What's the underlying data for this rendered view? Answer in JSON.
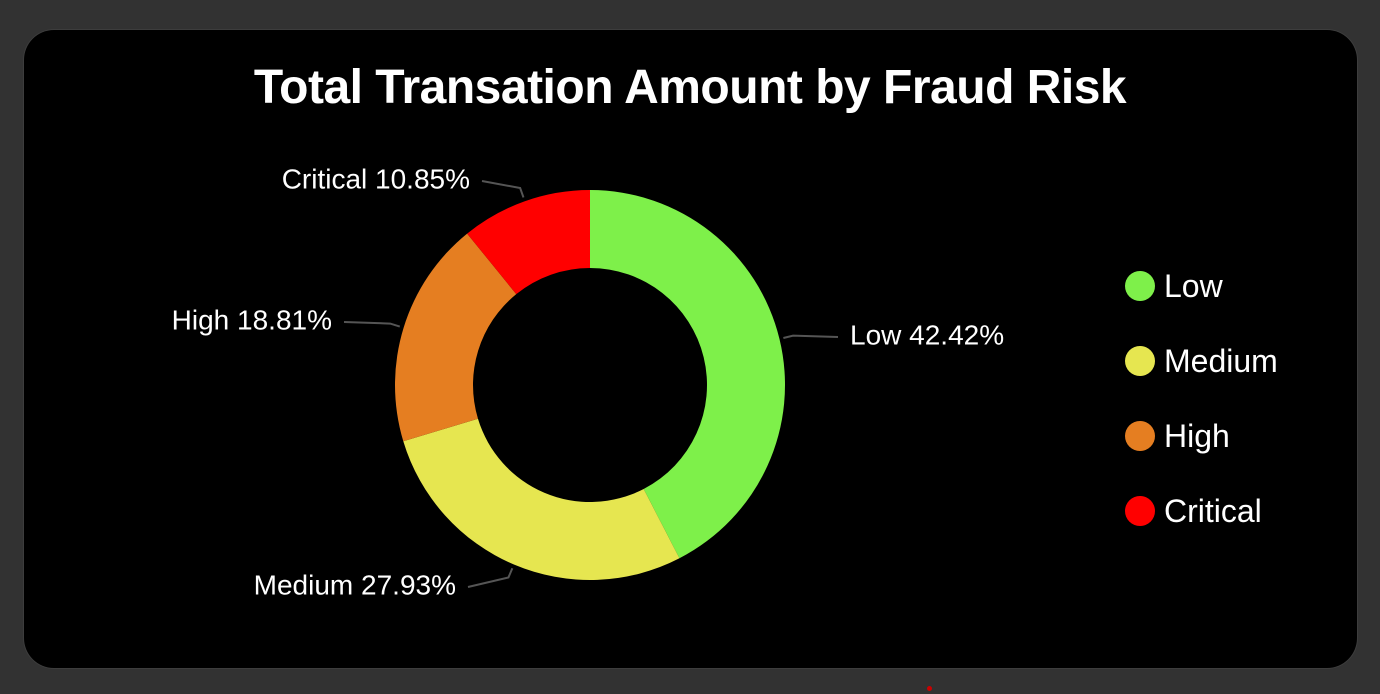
{
  "chart_data": {
    "type": "pie",
    "variant": "donut",
    "title": "Total Transation Amount by Fraud Risk",
    "slices": [
      {
        "label": "Low",
        "percent": 42.42,
        "percent_label": "42.42%",
        "color": "#7ef04a"
      },
      {
        "label": "Medium",
        "percent": 27.93,
        "percent_label": "27.93%",
        "color": "#e6e650"
      },
      {
        "label": "High",
        "percent": 18.81,
        "percent_label": "18.81%",
        "color": "#e57e21"
      },
      {
        "label": "Critical",
        "percent": 10.85,
        "percent_label": "10.85%",
        "color": "#ff0000"
      }
    ],
    "legend": {
      "placement": "right",
      "items": [
        "Low",
        "Medium",
        "High",
        "Critical"
      ]
    },
    "data_labels": "outside with leader lines"
  },
  "colors": {
    "background": "#323232",
    "card": "#000000",
    "text": "#ffffff",
    "leader_line": "#555555"
  }
}
